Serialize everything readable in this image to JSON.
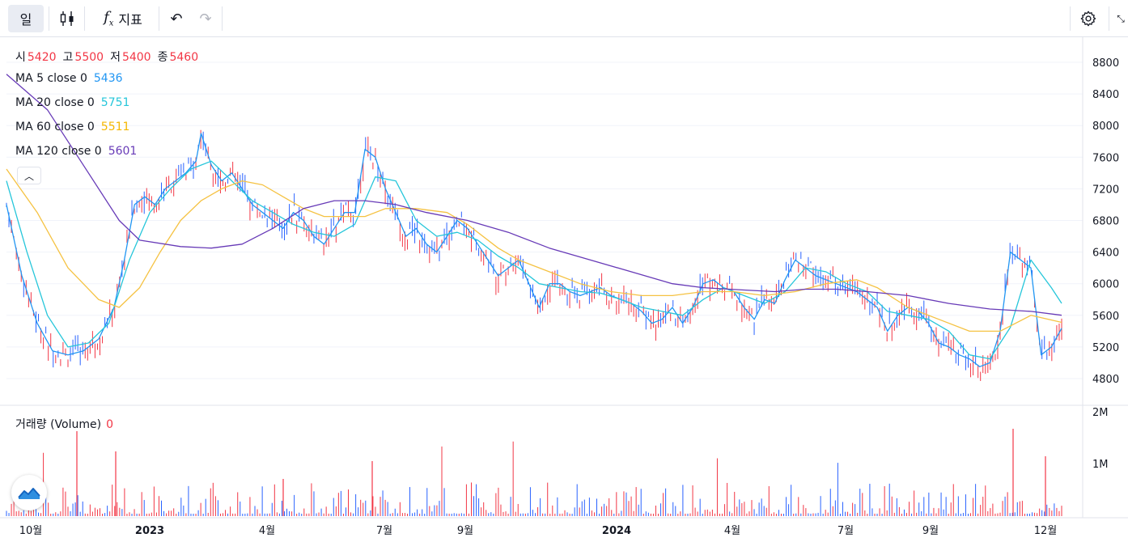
{
  "toolbar": {
    "period": "일",
    "indicators_label": "지표",
    "fx_symbol": "f",
    "icons": [
      "candlestick-icon",
      "function-icon",
      "undo-icon",
      "redo-icon",
      "gear-icon",
      "fullscreen-icon"
    ]
  },
  "legend": {
    "ohlc": {
      "open_label": "시",
      "open": "5420",
      "high_label": "고",
      "high": "5500",
      "low_label": "저",
      "low": "5400",
      "close_label": "종",
      "close": "5460"
    },
    "ma": [
      {
        "label": "MA 5 close 0",
        "value": "5436",
        "color": "#2196f3"
      },
      {
        "label": "MA 20 close 0",
        "value": "5751",
        "color": "#26c6da"
      },
      {
        "label": "MA 60 close 0",
        "value": "5511",
        "color": "#f5c242"
      },
      {
        "label": "MA 120 close 0",
        "value": "5601",
        "color": "#673ab7"
      }
    ],
    "volume_label": "거래량 (Volume)",
    "volume_value": "0"
  },
  "colors": {
    "up": "#f23645",
    "down": "#2962ff"
  },
  "chart_data": {
    "type": "line",
    "description_series": "daily OHLC bars with moving averages",
    "y_ticks": [
      "8800",
      "8400",
      "8000",
      "7600",
      "7200",
      "6800",
      "6400",
      "6000",
      "5600",
      "5200",
      "4800"
    ],
    "vol_ticks": [
      "2M",
      "1M"
    ],
    "x_ticks": [
      "10월",
      "2023",
      "4월",
      "7월",
      "9월",
      "2024",
      "4월",
      "7월",
      "9월",
      "12월"
    ],
    "ylim": [
      4600,
      9000
    ],
    "x_range": [
      "2022-09",
      "2024-12"
    ],
    "ma_series": [
      {
        "name": "MA 5",
        "points": [
          [
            0,
            7000
          ],
          [
            3,
            6100
          ],
          [
            6,
            5500
          ],
          [
            9,
            5150
          ],
          [
            12,
            5100
          ],
          [
            15,
            5150
          ],
          [
            18,
            5300
          ],
          [
            21,
            5700
          ],
          [
            23,
            6300
          ],
          [
            25,
            7000
          ],
          [
            27,
            7100
          ],
          [
            29,
            7000
          ],
          [
            31,
            7200
          ],
          [
            33,
            7300
          ],
          [
            35,
            7400
          ],
          [
            37,
            7550
          ],
          [
            38,
            7900
          ],
          [
            40,
            7500
          ],
          [
            42,
            7300
          ],
          [
            44,
            7400
          ],
          [
            46,
            7200
          ],
          [
            48,
            7000
          ],
          [
            50,
            6900
          ],
          [
            52,
            6800
          ],
          [
            54,
            6700
          ],
          [
            56,
            6900
          ],
          [
            58,
            6800
          ],
          [
            60,
            6600
          ],
          [
            62,
            6500
          ],
          [
            64,
            6700
          ],
          [
            66,
            6900
          ],
          [
            68,
            6900
          ],
          [
            70,
            7700
          ],
          [
            72,
            7600
          ],
          [
            74,
            7200
          ],
          [
            76,
            6900
          ],
          [
            78,
            6600
          ],
          [
            80,
            6700
          ],
          [
            82,
            6500
          ],
          [
            84,
            6400
          ],
          [
            86,
            6600
          ],
          [
            88,
            6800
          ],
          [
            90,
            6700
          ],
          [
            92,
            6500
          ],
          [
            94,
            6300
          ],
          [
            96,
            6100
          ],
          [
            98,
            6200
          ],
          [
            100,
            6300
          ],
          [
            102,
            6000
          ],
          [
            104,
            5700
          ],
          [
            106,
            6000
          ],
          [
            108,
            6000
          ],
          [
            110,
            5900
          ],
          [
            112,
            5850
          ],
          [
            114,
            5900
          ],
          [
            116,
            5950
          ],
          [
            118,
            5850
          ],
          [
            120,
            5800
          ],
          [
            122,
            5750
          ],
          [
            124,
            5650
          ],
          [
            126,
            5500
          ],
          [
            128,
            5550
          ],
          [
            130,
            5700
          ],
          [
            132,
            5500
          ],
          [
            134,
            5700
          ],
          [
            136,
            6000
          ],
          [
            138,
            6050
          ],
          [
            140,
            5950
          ],
          [
            142,
            5900
          ],
          [
            144,
            5700
          ],
          [
            146,
            5550
          ],
          [
            148,
            5800
          ],
          [
            150,
            5750
          ],
          [
            152,
            6050
          ],
          [
            154,
            6300
          ],
          [
            156,
            6200
          ],
          [
            158,
            6100
          ],
          [
            160,
            6050
          ],
          [
            162,
            6000
          ],
          [
            164,
            5950
          ],
          [
            166,
            5900
          ],
          [
            168,
            5800
          ],
          [
            170,
            5700
          ],
          [
            172,
            5400
          ],
          [
            174,
            5600
          ],
          [
            176,
            5700
          ],
          [
            178,
            5650
          ],
          [
            180,
            5500
          ],
          [
            182,
            5250
          ],
          [
            184,
            5200
          ],
          [
            186,
            5100
          ],
          [
            188,
            5050
          ],
          [
            190,
            4950
          ],
          [
            192,
            5000
          ],
          [
            194,
            5400
          ],
          [
            196,
            6400
          ],
          [
            198,
            6300
          ],
          [
            200,
            6200
          ],
          [
            202,
            5100
          ],
          [
            204,
            5200
          ],
          [
            206,
            5436
          ]
        ]
      },
      {
        "name": "MA 20",
        "points": [
          [
            0,
            7300
          ],
          [
            4,
            6400
          ],
          [
            8,
            5600
          ],
          [
            12,
            5200
          ],
          [
            16,
            5250
          ],
          [
            20,
            5500
          ],
          [
            24,
            6300
          ],
          [
            28,
            6900
          ],
          [
            32,
            7200
          ],
          [
            36,
            7450
          ],
          [
            40,
            7550
          ],
          [
            44,
            7300
          ],
          [
            48,
            7050
          ],
          [
            52,
            6900
          ],
          [
            56,
            6750
          ],
          [
            60,
            6650
          ],
          [
            64,
            6600
          ],
          [
            68,
            6750
          ],
          [
            72,
            7350
          ],
          [
            76,
            7300
          ],
          [
            80,
            6800
          ],
          [
            84,
            6600
          ],
          [
            88,
            6650
          ],
          [
            92,
            6550
          ],
          [
            96,
            6350
          ],
          [
            100,
            6200
          ],
          [
            104,
            6000
          ],
          [
            108,
            5950
          ],
          [
            112,
            5900
          ],
          [
            116,
            5880
          ],
          [
            120,
            5800
          ],
          [
            124,
            5700
          ],
          [
            128,
            5650
          ],
          [
            132,
            5600
          ],
          [
            136,
            5800
          ],
          [
            140,
            5950
          ],
          [
            144,
            5850
          ],
          [
            148,
            5750
          ],
          [
            152,
            5900
          ],
          [
            156,
            6200
          ],
          [
            160,
            6150
          ],
          [
            164,
            6000
          ],
          [
            168,
            5900
          ],
          [
            172,
            5650
          ],
          [
            176,
            5600
          ],
          [
            180,
            5550
          ],
          [
            184,
            5400
          ],
          [
            188,
            5100
          ],
          [
            192,
            5050
          ],
          [
            196,
            5450
          ],
          [
            200,
            6300
          ],
          [
            204,
            5950
          ],
          [
            206,
            5751
          ]
        ]
      },
      {
        "name": "MA 60",
        "points": [
          [
            0,
            7450
          ],
          [
            6,
            6900
          ],
          [
            12,
            6200
          ],
          [
            18,
            5800
          ],
          [
            22,
            5700
          ],
          [
            26,
            5950
          ],
          [
            30,
            6400
          ],
          [
            34,
            6800
          ],
          [
            38,
            7050
          ],
          [
            42,
            7200
          ],
          [
            46,
            7300
          ],
          [
            50,
            7250
          ],
          [
            54,
            7100
          ],
          [
            58,
            6950
          ],
          [
            62,
            6850
          ],
          [
            66,
            6850
          ],
          [
            70,
            6850
          ],
          [
            74,
            6950
          ],
          [
            80,
            6950
          ],
          [
            86,
            6900
          ],
          [
            90,
            6750
          ],
          [
            96,
            6450
          ],
          [
            100,
            6300
          ],
          [
            106,
            6150
          ],
          [
            112,
            6000
          ],
          [
            118,
            5900
          ],
          [
            124,
            5850
          ],
          [
            130,
            5850
          ],
          [
            136,
            5900
          ],
          [
            142,
            5900
          ],
          [
            148,
            5850
          ],
          [
            154,
            5900
          ],
          [
            160,
            6000
          ],
          [
            166,
            6050
          ],
          [
            170,
            5950
          ],
          [
            176,
            5700
          ],
          [
            182,
            5550
          ],
          [
            188,
            5400
          ],
          [
            194,
            5400
          ],
          [
            200,
            5600
          ],
          [
            206,
            5511
          ]
        ]
      },
      {
        "name": "MA 120",
        "points": [
          [
            0,
            8650
          ],
          [
            8,
            8200
          ],
          [
            16,
            7400
          ],
          [
            22,
            6800
          ],
          [
            26,
            6550
          ],
          [
            34,
            6470
          ],
          [
            40,
            6450
          ],
          [
            46,
            6500
          ],
          [
            52,
            6700
          ],
          [
            58,
            6950
          ],
          [
            64,
            7050
          ],
          [
            70,
            7050
          ],
          [
            76,
            7000
          ],
          [
            82,
            6900
          ],
          [
            90,
            6800
          ],
          [
            98,
            6650
          ],
          [
            106,
            6450
          ],
          [
            114,
            6300
          ],
          [
            122,
            6150
          ],
          [
            130,
            6000
          ],
          [
            136,
            5950
          ],
          [
            144,
            5920
          ],
          [
            150,
            5900
          ],
          [
            156,
            5930
          ],
          [
            162,
            5930
          ],
          [
            168,
            5900
          ],
          [
            176,
            5850
          ],
          [
            184,
            5750
          ],
          [
            192,
            5680
          ],
          [
            200,
            5650
          ],
          [
            206,
            5601
          ]
        ]
      }
    ]
  }
}
